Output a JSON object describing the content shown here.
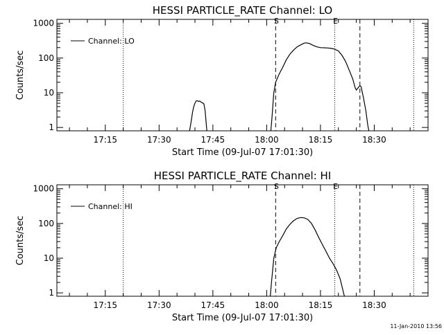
{
  "chart_data": [
    {
      "type": "line",
      "title": "HESSI PARTICLE_RATE Channel: LO",
      "xlabel": "Start Time (09-Jul-07 17:01:30)",
      "ylabel": "Counts/sec",
      "y_scale": "log",
      "ylim": [
        0.8,
        1300
      ],
      "xlim": [
        "17:01:30",
        "18:45:00"
      ],
      "x_tick_labels": [
        "17:15",
        "17:30",
        "17:45",
        "18:00",
        "18:15",
        "18:30"
      ],
      "y_tick_labels": [
        "1",
        "10",
        "100",
        "1000"
      ],
      "legend": {
        "position": "top-left",
        "entries": [
          "Channel: LO"
        ]
      },
      "markers": [
        {
          "label": "S",
          "x": "18:02:30",
          "style": "dashed"
        },
        {
          "label": "E",
          "x": "18:19:00",
          "style": "dotted"
        }
      ],
      "vlines": [
        {
          "x": "17:20:00",
          "style": "dotted"
        },
        {
          "x": "18:02:30",
          "style": "dashed"
        },
        {
          "x": "18:19:00",
          "style": "dotted"
        },
        {
          "x": "18:26:00",
          "style": "dashed"
        },
        {
          "x": "18:41:00",
          "style": "dotted"
        }
      ],
      "series": [
        {
          "name": "Channel: LO",
          "segments": [
            [
              [
                "17:38:30",
                0.8
              ],
              [
                "17:38:40",
                1.0
              ],
              [
                "17:39:00",
                1.6
              ],
              [
                "17:39:20",
                2.8
              ],
              [
                "17:39:40",
                4.0
              ],
              [
                "17:40:00",
                5.0
              ],
              [
                "17:40:20",
                5.8
              ],
              [
                "17:40:40",
                5.9
              ],
              [
                "17:41:00",
                5.6
              ],
              [
                "17:41:20",
                5.8
              ],
              [
                "17:41:40",
                5.4
              ],
              [
                "17:42:00",
                5.2
              ],
              [
                "17:42:30",
                4.8
              ],
              [
                "17:42:50",
                3.0
              ],
              [
                "17:43:10",
                1.2
              ],
              [
                "17:43:20",
                0.8
              ]
            ],
            [
              [
                "18:01:10",
                0.8
              ],
              [
                "18:01:30",
                2.0
              ],
              [
                "18:02:00",
                10
              ],
              [
                "18:02:30",
                20
              ],
              [
                "18:03:30",
                35
              ],
              [
                "18:04:30",
                55
              ],
              [
                "18:05:30",
                90
              ],
              [
                "18:06:30",
                130
              ],
              [
                "18:07:30",
                170
              ],
              [
                "18:08:30",
                210
              ],
              [
                "18:09:30",
                240
              ],
              [
                "18:10:30",
                270
              ],
              [
                "18:11:00",
                275
              ],
              [
                "18:12:00",
                260
              ],
              [
                "18:13:00",
                230
              ],
              [
                "18:14:00",
                210
              ],
              [
                "18:15:00",
                200
              ],
              [
                "18:16:00",
                198
              ],
              [
                "18:17:00",
                195
              ],
              [
                "18:18:00",
                190
              ],
              [
                "18:19:00",
                180
              ],
              [
                "18:20:00",
                160
              ],
              [
                "18:21:00",
                120
              ],
              [
                "18:22:00",
                80
              ],
              [
                "18:23:00",
                45
              ],
              [
                "18:24:00",
                25
              ],
              [
                "18:24:40",
                14
              ],
              [
                "18:25:00",
                12
              ],
              [
                "18:26:00",
                16
              ],
              [
                "18:26:20",
                15
              ],
              [
                "18:27:00",
                7
              ],
              [
                "18:27:40",
                3
              ],
              [
                "18:28:10",
                1.2
              ],
              [
                "18:28:30",
                0.8
              ]
            ]
          ]
        }
      ]
    },
    {
      "type": "line",
      "title": "HESSI PARTICLE_RATE Channel: HI",
      "xlabel": "Start Time (09-Jul-07 17:01:30)",
      "ylabel": "Counts/sec",
      "y_scale": "log",
      "ylim": [
        0.8,
        1300
      ],
      "xlim": [
        "17:01:30",
        "18:45:00"
      ],
      "x_tick_labels": [
        "17:15",
        "17:30",
        "17:45",
        "18:00",
        "18:15",
        "18:30"
      ],
      "y_tick_labels": [
        "1",
        "10",
        "100",
        "1000"
      ],
      "legend": {
        "position": "top-left",
        "entries": [
          "Channel: HI"
        ]
      },
      "markers": [
        {
          "label": "S",
          "x": "18:02:30",
          "style": "dashed"
        },
        {
          "label": "E",
          "x": "18:19:00",
          "style": "dotted"
        }
      ],
      "vlines": [
        {
          "x": "17:20:00",
          "style": "dotted"
        },
        {
          "x": "18:02:30",
          "style": "dashed"
        },
        {
          "x": "18:19:00",
          "style": "dotted"
        },
        {
          "x": "18:26:00",
          "style": "dashed"
        },
        {
          "x": "18:41:00",
          "style": "dotted"
        }
      ],
      "series": [
        {
          "name": "Channel: HI",
          "segments": [
            [
              [
                "18:01:00",
                0.8
              ],
              [
                "18:01:20",
                2.0
              ],
              [
                "18:02:00",
                10
              ],
              [
                "18:02:40",
                20
              ],
              [
                "18:03:30",
                30
              ],
              [
                "18:04:30",
                45
              ],
              [
                "18:05:30",
                70
              ],
              [
                "18:06:30",
                95
              ],
              [
                "18:07:30",
                120
              ],
              [
                "18:08:30",
                140
              ],
              [
                "18:09:30",
                148
              ],
              [
                "18:10:30",
                145
              ],
              [
                "18:11:30",
                130
              ],
              [
                "18:12:30",
                100
              ],
              [
                "18:13:30",
                65
              ],
              [
                "18:14:30",
                40
              ],
              [
                "18:15:30",
                25
              ],
              [
                "18:16:30",
                16
              ],
              [
                "18:17:30",
                10
              ],
              [
                "18:18:30",
                7
              ],
              [
                "18:19:30",
                4.5
              ],
              [
                "18:20:30",
                2.5
              ],
              [
                "18:21:10",
                1.3
              ],
              [
                "18:21:40",
                0.8
              ]
            ]
          ]
        }
      ]
    }
  ],
  "footer": {
    "timestamp": "11-Jan-2010 13:56"
  }
}
